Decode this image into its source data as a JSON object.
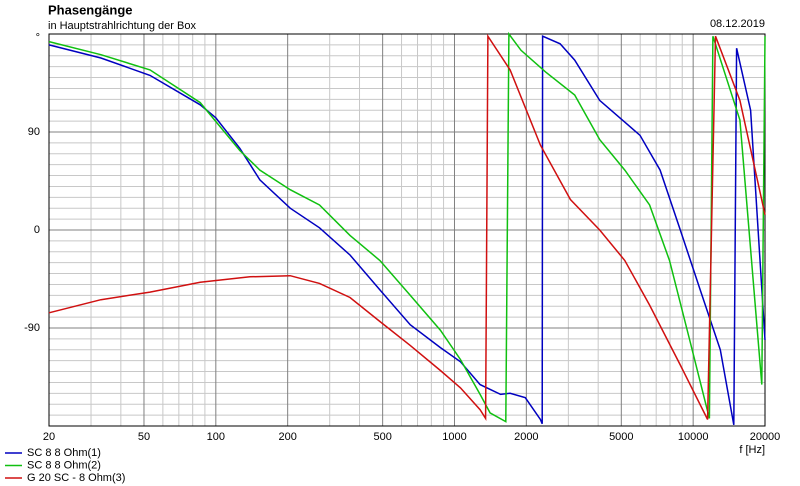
{
  "chart_data": {
    "type": "line",
    "title": "Phasengänge",
    "subtitle": "in Hauptstrahlrichtung der Box",
    "date": "08.12.2019",
    "x_label": "f [Hz]",
    "y_label": "°",
    "log_x": true,
    "grid": true,
    "xlim": [
      20,
      20000
    ],
    "ylim": [
      -180,
      180
    ],
    "xticks": [
      20,
      50,
      100,
      200,
      500,
      1000,
      2000,
      5000,
      10000,
      20000
    ],
    "xgrid_minor": [
      30,
      40,
      60,
      70,
      80,
      90,
      300,
      400,
      600,
      700,
      800,
      900,
      3000,
      4000,
      6000,
      7000,
      8000,
      9000
    ],
    "yticks": [
      -90,
      0,
      90
    ],
    "ygrid_minor": [
      -170,
      -160,
      -150,
      -140,
      -130,
      -120,
      -110,
      -100,
      -80,
      -70,
      -60,
      -50,
      -40,
      -30,
      -20,
      -10,
      10,
      20,
      30,
      40,
      50,
      60,
      70,
      80,
      100,
      110,
      120,
      130,
      140,
      150,
      160,
      170
    ],
    "series": [
      {
        "name": "SC 8 8 Ohm(1)",
        "color": "#0000c0",
        "x": [
          20,
          33,
          53,
          86,
          100,
          126,
          153,
          205,
          272,
          365,
          487,
          652,
          873,
          1060,
          1280,
          1560,
          1710,
          1980,
          2290,
          2330,
          2340,
          2770,
          3190,
          4060,
          4930,
          5990,
          7270,
          8830,
          10700,
          13000,
          14800,
          15200,
          17400,
          20000
        ],
        "values": [
          170,
          158,
          142,
          115,
          103,
          75,
          46,
          20,
          2,
          -23,
          -55,
          -87,
          -108,
          -121,
          -142,
          -151,
          -150,
          -154,
          -174,
          -178,
          178,
          171,
          156,
          119,
          103,
          87,
          55,
          0,
          -55,
          -110,
          -179,
          167,
          110,
          -101
        ]
      },
      {
        "name": "SC 8 8 Ohm(2)",
        "color": "#10c010",
        "x": [
          20,
          33,
          53,
          86,
          126,
          153,
          205,
          272,
          365,
          487,
          652,
          873,
          1060,
          1280,
          1410,
          1640,
          1690,
          1900,
          2410,
          3190,
          4060,
          5170,
          6570,
          7960,
          9670,
          11700,
          12100,
          15700,
          19400,
          20000
        ],
        "values": [
          173,
          161,
          147,
          117,
          73,
          55,
          37,
          23,
          -5,
          -28,
          -60,
          -92,
          -119,
          -151,
          -168,
          -176,
          180,
          165,
          145,
          124,
          83,
          55,
          23,
          -28,
          -101,
          -173,
          178,
          101,
          -142,
          178
        ]
      },
      {
        "name": "G 20 SC - 8 Ohm(3)",
        "color": "#d01010",
        "x": [
          20,
          33,
          53,
          86,
          139,
          205,
          272,
          365,
          487,
          652,
          873,
          1060,
          1280,
          1350,
          1380,
          1710,
          2290,
          3060,
          4060,
          5170,
          6570,
          8830,
          11500,
          12400,
          15700,
          20000
        ],
        "values": [
          -76,
          -64,
          -57,
          -48,
          -43,
          -42,
          -49,
          -62,
          -84,
          -106,
          -129,
          -145,
          -165,
          -173,
          178,
          147,
          78,
          28,
          0,
          -28,
          -69,
          -124,
          -174,
          178,
          119,
          14
        ]
      }
    ]
  }
}
